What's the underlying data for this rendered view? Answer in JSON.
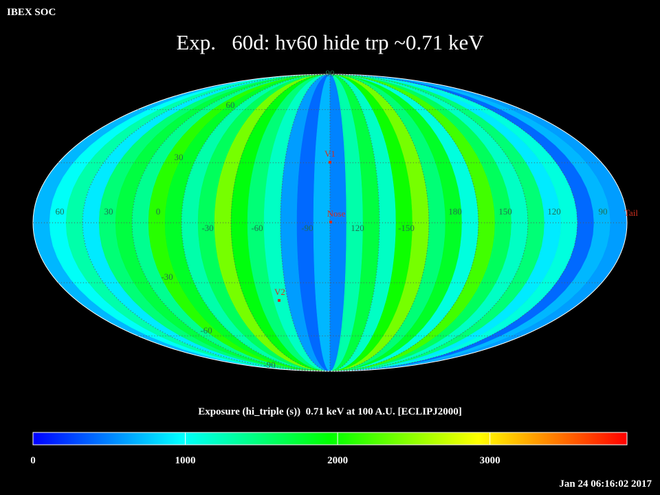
{
  "chart_data": {
    "type": "map",
    "header": "IBEX SOC",
    "title": "Exp.   60d: hv60 hide trp ~0.71 keV",
    "colorbar_title": "Exposure (hi_triple (s))  0.71 keV at 100 A.U. [ECLIPJ2000]",
    "timestamp": "Jan 24 06:16:02 2017",
    "strips": [
      700,
      1000,
      1300,
      900,
      1500,
      1700,
      1400,
      2100,
      1800,
      1300,
      1600,
      2400,
      1900,
      1500,
      1200,
      600,
      400,
      700,
      500,
      1300,
      1700,
      1200,
      2000,
      2400,
      1500,
      1800,
      1100,
      2200,
      1600,
      1200,
      1500,
      900,
      1100,
      400,
      700,
      600
    ],
    "colormap": [
      "#0000ff",
      "#00ffff",
      "#00ff00",
      "#ffff00",
      "#ff0000"
    ],
    "clim": [
      0,
      3900
    ],
    "cticks": [
      0,
      1000,
      2000,
      3000
    ],
    "longitude_labels": [
      "60",
      "30",
      "0",
      "-30",
      "-60",
      "-90",
      "120",
      "-150",
      "180",
      "150",
      "120",
      "90"
    ],
    "latitude_labels": [
      "90",
      "60",
      "30",
      "-30",
      "-60",
      "-90"
    ],
    "markers": [
      "V1",
      "Nose",
      "V2",
      "Tail"
    ]
  }
}
